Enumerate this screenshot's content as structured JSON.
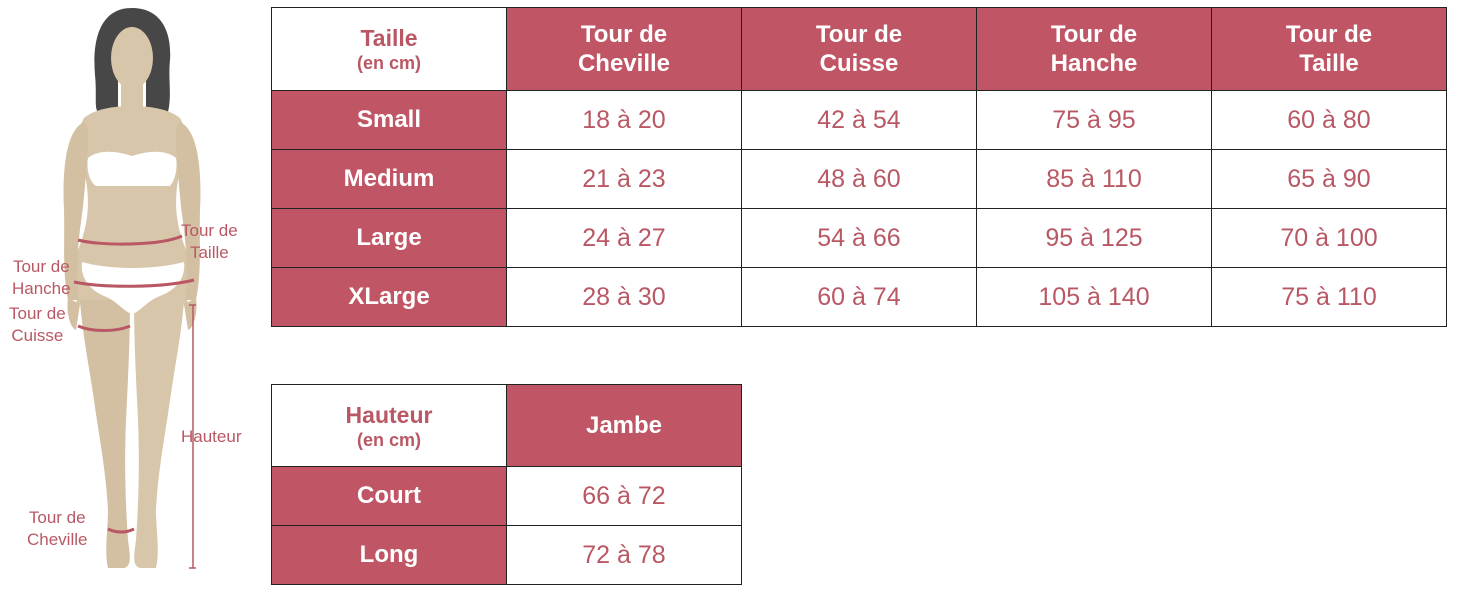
{
  "colors": {
    "accent": "#c05665",
    "text_accent": "#b95864",
    "skin": "#d8c6ab",
    "hair": "#474747"
  },
  "figure": {
    "labels": {
      "tour_de_taille": [
        "Tour de",
        "Taille"
      ],
      "tour_de_hanche": [
        "Tour de",
        "Hanche"
      ],
      "tour_de_cuisse": [
        "Tour de",
        "Cuisse"
      ],
      "hauteur": "Hauteur",
      "tour_de_cheville": [
        "Tour de",
        "Cheville"
      ]
    }
  },
  "size_table": {
    "corner": {
      "title": "Taille",
      "unit": "(en cm)"
    },
    "columns": [
      [
        "Tour de",
        "Cheville"
      ],
      [
        "Tour de",
        "Cuisse"
      ],
      [
        "Tour de",
        "Hanche"
      ],
      [
        "Tour de",
        "Taille"
      ]
    ],
    "rows": [
      {
        "label": "Small",
        "values": [
          "18 à 20",
          "42 à 54",
          "75 à 95",
          "60 à 80"
        ]
      },
      {
        "label": "Medium",
        "values": [
          "21 à 23",
          "48 à 60",
          "85 à 110",
          "65 à 90"
        ]
      },
      {
        "label": "Large",
        "values": [
          "24 à 27",
          "54 à 66",
          "95 à 125",
          "70 à 100"
        ]
      },
      {
        "label": "XLarge",
        "values": [
          "28 à 30",
          "60 à 74",
          "105 à 140",
          "75 à 110"
        ]
      }
    ]
  },
  "height_table": {
    "corner": {
      "title": "Hauteur",
      "unit": "(en cm)"
    },
    "column": "Jambe",
    "rows": [
      {
        "label": "Court",
        "value": "66 à 72"
      },
      {
        "label": "Long",
        "value": "72 à 78"
      }
    ]
  }
}
